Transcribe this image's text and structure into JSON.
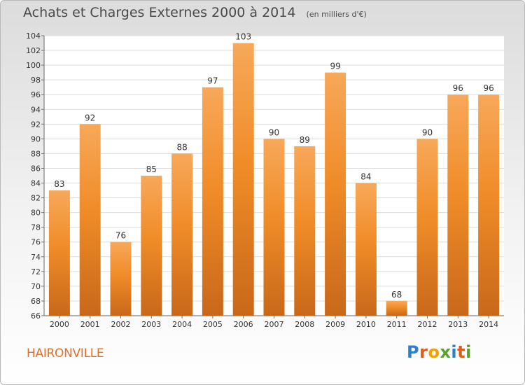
{
  "title": "Achats et Charges Externes 2000 à 2014",
  "subtitle": "(en milliers d'€)",
  "commune": "HAIRONVILLE",
  "logo": {
    "letters": [
      "P",
      "r",
      "o",
      "x",
      "i",
      "t",
      "i"
    ],
    "colors": [
      "#2e7dd1",
      "#e05a1c",
      "#f0a000",
      "#5aa02c",
      "#2e7dd1",
      "#e05a1c",
      "#5aa02c"
    ]
  },
  "colors": {
    "bar": "#f08c28",
    "bar_light": "#f7a85a",
    "bar_dark": "#c8681a",
    "title": "#4a4a4a",
    "commune": "#e0702a"
  },
  "chart_data": {
    "type": "bar",
    "title": "Achats et Charges Externes 2000 à 2014",
    "subtitle": "(en milliers d'€)",
    "categories": [
      "2000",
      "2001",
      "2002",
      "2003",
      "2004",
      "2005",
      "2006",
      "2007",
      "2008",
      "2009",
      "2010",
      "2011",
      "2012",
      "2013",
      "2014"
    ],
    "values": [
      83,
      92,
      76,
      85,
      88,
      97,
      103,
      90,
      89,
      99,
      84,
      68,
      90,
      96,
      96
    ],
    "ylim": [
      66,
      104
    ],
    "yticks": [
      66,
      68,
      70,
      72,
      74,
      76,
      78,
      80,
      82,
      84,
      86,
      88,
      90,
      92,
      94,
      96,
      98,
      100,
      102,
      104
    ],
    "grid": true,
    "xlabel": "",
    "ylabel": ""
  }
}
